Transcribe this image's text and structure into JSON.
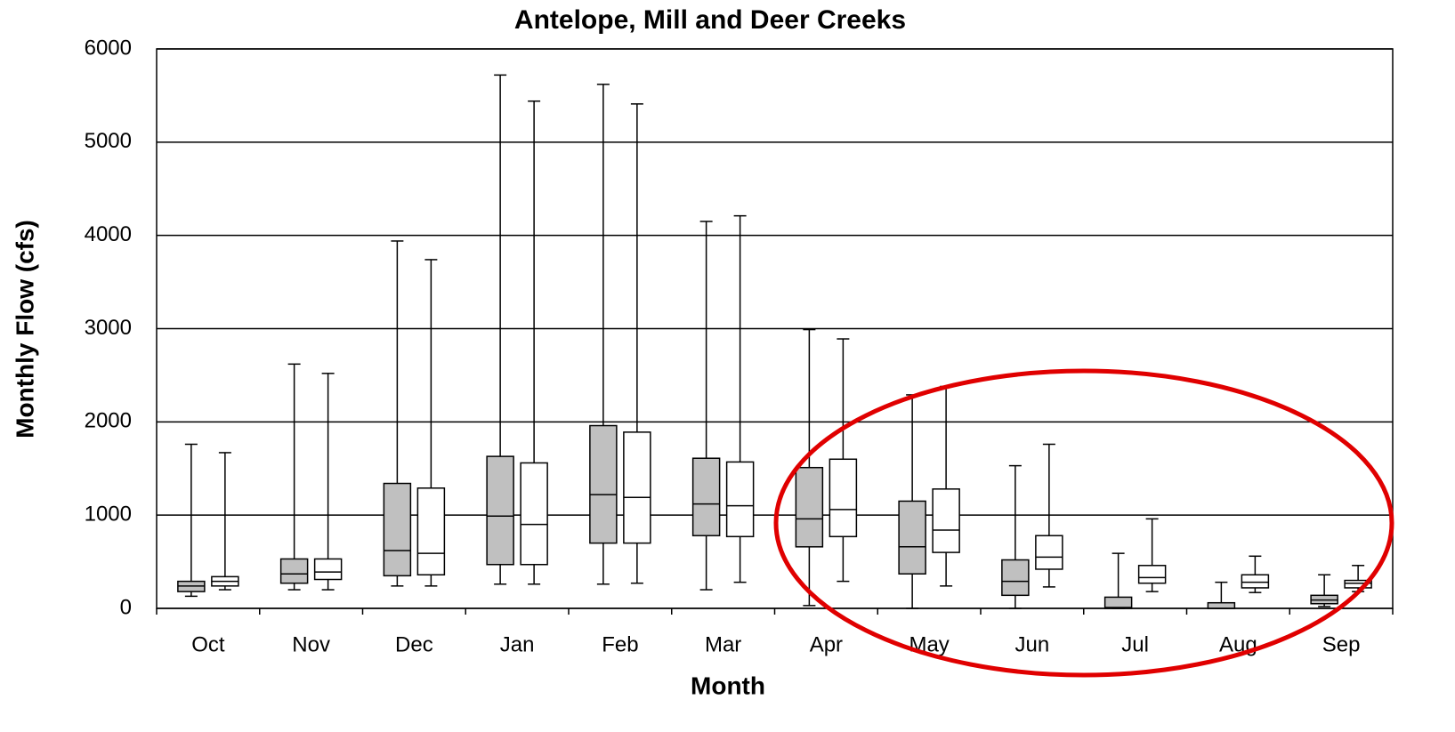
{
  "chart_data": {
    "type": "box",
    "title": "Antelope, Mill and Deer Creeks",
    "x_label": "Month",
    "y_label": "Monthly Flow (cfs)",
    "categories": [
      "Oct",
      "Nov",
      "Dec",
      "Jan",
      "Feb",
      "Mar",
      "Apr",
      "May",
      "Jun",
      "Jul",
      "Aug",
      "Sep"
    ],
    "ylim": [
      0,
      6000
    ],
    "yticks": [
      0,
      1000,
      2000,
      3000,
      4000,
      5000,
      6000
    ],
    "grid": true,
    "series": [
      {
        "color": "#c0c0c0",
        "min": [
          130,
          200,
          240,
          260,
          260,
          200,
          30,
          0,
          0,
          0,
          0,
          20
        ],
        "q1": [
          180,
          270,
          350,
          470,
          700,
          780,
          660,
          370,
          140,
          0,
          0,
          50
        ],
        "median": [
          240,
          370,
          620,
          990,
          1220,
          1120,
          960,
          660,
          290,
          10,
          0,
          90
        ],
        "q3": [
          290,
          530,
          1340,
          1630,
          1960,
          1610,
          1510,
          1150,
          520,
          120,
          60,
          140
        ],
        "max": [
          1760,
          2620,
          3940,
          5720,
          5620,
          4150,
          2990,
          2290,
          1530,
          590,
          280,
          360
        ]
      },
      {
        "color": "#ffffff",
        "min": [
          200,
          200,
          240,
          260,
          270,
          280,
          290,
          240,
          230,
          180,
          170,
          180
        ],
        "q1": [
          240,
          310,
          360,
          470,
          700,
          770,
          770,
          600,
          420,
          270,
          220,
          220
        ],
        "median": [
          290,
          390,
          590,
          900,
          1190,
          1100,
          1060,
          840,
          550,
          330,
          280,
          270
        ],
        "q3": [
          340,
          530,
          1290,
          1560,
          1890,
          1570,
          1600,
          1280,
          780,
          460,
          360,
          300
        ],
        "max": [
          1670,
          2520,
          3740,
          5440,
          5410,
          4210,
          2890,
          2380,
          1760,
          960,
          560,
          460
        ]
      }
    ]
  }
}
